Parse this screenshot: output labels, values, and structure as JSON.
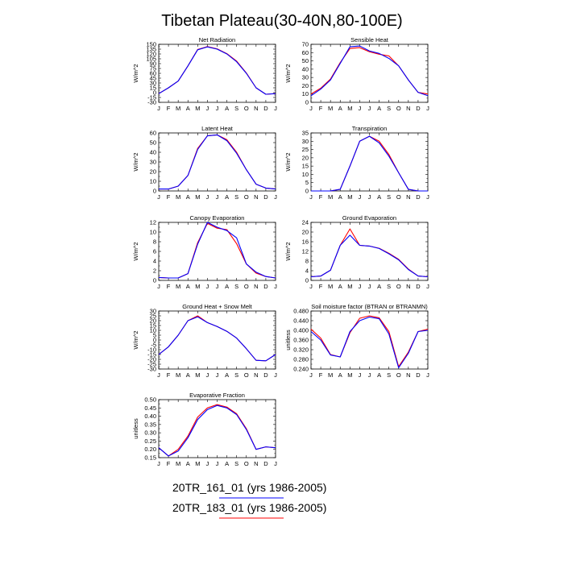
{
  "title": "Tibetan Plateau(30-40N,80-100E)",
  "legend": [
    {
      "label": "20TR_161_01 (yrs 1986-2005)",
      "color": "#0000ff"
    },
    {
      "label": "20TR_183_01 (yrs 1986-2005)",
      "color": "#ff0000"
    }
  ],
  "chart_data": [
    {
      "type": "line",
      "title": "Net Radiation",
      "ylabel": "W/m^2",
      "categories": [
        "J",
        "F",
        "M",
        "A",
        "M",
        "J",
        "J",
        "A",
        "S",
        "O",
        "N",
        "D",
        "J"
      ],
      "ylim": [
        -30,
        150
      ],
      "yticks": [
        "-30",
        "-15",
        "0",
        "15",
        "30",
        "45",
        "60",
        "75",
        "90",
        "105",
        "120",
        "135",
        "150"
      ],
      "series": [
        {
          "values": [
            -3,
            15,
            36,
            83,
            133,
            142,
            135,
            120,
            96,
            60,
            15,
            -5,
            -3
          ]
        },
        {
          "values": [
            -3,
            15,
            36,
            83,
            134,
            143,
            136,
            121,
            98,
            61,
            15,
            -5,
            -3
          ]
        }
      ]
    },
    {
      "type": "line",
      "title": "Sensible Heat",
      "ylabel": "W/m^2",
      "categories": [
        "J",
        "F",
        "M",
        "A",
        "M",
        "J",
        "J",
        "A",
        "S",
        "O",
        "N",
        "D",
        "J"
      ],
      "ylim": [
        0,
        70
      ],
      "yticks": [
        "0",
        "10",
        "20",
        "30",
        "40",
        "50",
        "60",
        "70"
      ],
      "series": [
        {
          "values": [
            8,
            16,
            27,
            47,
            67,
            68,
            62,
            59,
            53,
            44,
            27,
            12,
            8
          ]
        },
        {
          "values": [
            10,
            17,
            28,
            48,
            65,
            66,
            61,
            58,
            56,
            44,
            27,
            12,
            10
          ]
        }
      ]
    },
    {
      "type": "line",
      "title": "Latent Heat",
      "ylabel": "W/m^2",
      "categories": [
        "J",
        "F",
        "M",
        "A",
        "M",
        "J",
        "J",
        "A",
        "S",
        "O",
        "N",
        "D",
        "J"
      ],
      "ylim": [
        0,
        60
      ],
      "yticks": [
        "0",
        "10",
        "20",
        "30",
        "40",
        "50",
        "60"
      ],
      "series": [
        {
          "values": [
            2,
            2,
            5,
            16,
            43,
            57,
            58,
            52,
            39,
            22,
            7,
            3,
            2
          ]
        },
        {
          "values": [
            2,
            2,
            5,
            16,
            44,
            57,
            58,
            53,
            40,
            22,
            7,
            3,
            2
          ]
        }
      ]
    },
    {
      "type": "line",
      "title": "Transpiration",
      "ylabel": "W/m^2",
      "categories": [
        "J",
        "F",
        "M",
        "A",
        "M",
        "J",
        "J",
        "A",
        "S",
        "O",
        "N",
        "D",
        "J"
      ],
      "ylim": [
        0,
        35
      ],
      "yticks": [
        "0",
        "5",
        "10",
        "15",
        "20",
        "25",
        "30",
        "35"
      ],
      "series": [
        {
          "values": [
            0,
            0,
            0,
            1,
            15,
            30,
            33,
            29,
            21,
            11,
            1,
            0,
            0
          ]
        },
        {
          "values": [
            0,
            0,
            0,
            1,
            15,
            30,
            33,
            30,
            22,
            11,
            1,
            0,
            0
          ]
        }
      ]
    },
    {
      "type": "line",
      "title": "Canopy Evaporation",
      "ylabel": "W/m^2",
      "categories": [
        "J",
        "F",
        "M",
        "A",
        "M",
        "J",
        "J",
        "A",
        "S",
        "O",
        "N",
        "D",
        "J"
      ],
      "ylim": [
        0,
        12
      ],
      "yticks": [
        "0",
        "2",
        "4",
        "6",
        "8",
        "10",
        "12"
      ],
      "series": [
        {
          "values": [
            0.6,
            0.5,
            0.5,
            1.4,
            7.5,
            12,
            11,
            10.3,
            8.8,
            3.4,
            1.7,
            0.8,
            0.5
          ]
        },
        {
          "values": [
            0.6,
            0.5,
            0.5,
            1.4,
            7.8,
            11.8,
            10.8,
            10.5,
            7.6,
            3.4,
            1.5,
            0.8,
            0.5
          ]
        }
      ]
    },
    {
      "type": "line",
      "title": "Ground Evaporation",
      "ylabel": "W/m^2",
      "categories": [
        "J",
        "F",
        "M",
        "A",
        "M",
        "J",
        "J",
        "A",
        "S",
        "O",
        "N",
        "D",
        "J"
      ],
      "ylim": [
        0,
        24
      ],
      "yticks": [
        "0",
        "4",
        "8",
        "12",
        "16",
        "20",
        "24"
      ],
      "series": [
        {
          "values": [
            1.5,
            1.8,
            4.2,
            14.5,
            18.7,
            14.5,
            14.2,
            13.2,
            11,
            8.5,
            4.5,
            1.8,
            1.5
          ]
        },
        {
          "values": [
            1.5,
            1.8,
            4.2,
            14.5,
            21.3,
            14.5,
            14.2,
            13.3,
            11.2,
            8.7,
            4.7,
            1.8,
            1.5
          ]
        }
      ]
    },
    {
      "type": "line",
      "title": "Ground Heat + Snow Melt",
      "ylabel": "W/m^2",
      "categories": [
        "J",
        "F",
        "M",
        "A",
        "M",
        "J",
        "J",
        "A",
        "S",
        "O",
        "N",
        "D",
        "J"
      ],
      "ylim": [
        -30,
        30
      ],
      "yticks": [
        "-30",
        "-25",
        "-20",
        "-15",
        "-10",
        "-5",
        "0",
        "5",
        "10",
        "15",
        "20",
        "25",
        "30"
      ],
      "series": [
        {
          "values": [
            -15,
            -7,
            5,
            20,
            24,
            18,
            14,
            9,
            2,
            -9,
            -21,
            -21.5,
            -15
          ]
        },
        {
          "values": [
            -15,
            -7,
            5,
            20,
            25,
            18,
            14,
            9,
            2,
            -9,
            -21,
            -21.5,
            -15
          ]
        }
      ]
    },
    {
      "type": "line",
      "title": "Soil moisture factor (BTRAN or BTRANMN)",
      "ylabel": "unitless",
      "categories": [
        "J",
        "F",
        "M",
        "A",
        "M",
        "J",
        "J",
        "A",
        "S",
        "O",
        "N",
        "D",
        "J"
      ],
      "ylim": [
        0.24,
        0.48
      ],
      "yticks": [
        "0.240",
        "0.280",
        "0.320",
        "0.360",
        "0.400",
        "0.440",
        "0.480"
      ],
      "series": [
        {
          "values": [
            0.395,
            0.36,
            0.298,
            0.29,
            0.395,
            0.44,
            0.455,
            0.448,
            0.385,
            0.245,
            0.305,
            0.395,
            0.4
          ]
        },
        {
          "values": [
            0.405,
            0.368,
            0.3,
            0.29,
            0.39,
            0.45,
            0.46,
            0.452,
            0.395,
            0.25,
            0.31,
            0.395,
            0.405
          ]
        }
      ]
    },
    {
      "type": "line",
      "title": "Evaporative Fraction",
      "ylabel": "unitless",
      "categories": [
        "J",
        "F",
        "M",
        "A",
        "M",
        "J",
        "J",
        "A",
        "S",
        "O",
        "N",
        "D",
        "J"
      ],
      "ylim": [
        0.15,
        0.5
      ],
      "yticks": [
        "0.15",
        "0.20",
        "0.25",
        "0.30",
        "0.35",
        "0.40",
        "0.45",
        "0.50"
      ],
      "series": [
        {
          "values": [
            0.21,
            0.16,
            0.19,
            0.27,
            0.38,
            0.44,
            0.465,
            0.45,
            0.41,
            0.32,
            0.2,
            0.215,
            0.21
          ]
        },
        {
          "values": [
            0.21,
            0.16,
            0.2,
            0.28,
            0.395,
            0.45,
            0.47,
            0.455,
            0.415,
            0.325,
            0.2,
            0.215,
            0.21
          ]
        }
      ]
    }
  ]
}
